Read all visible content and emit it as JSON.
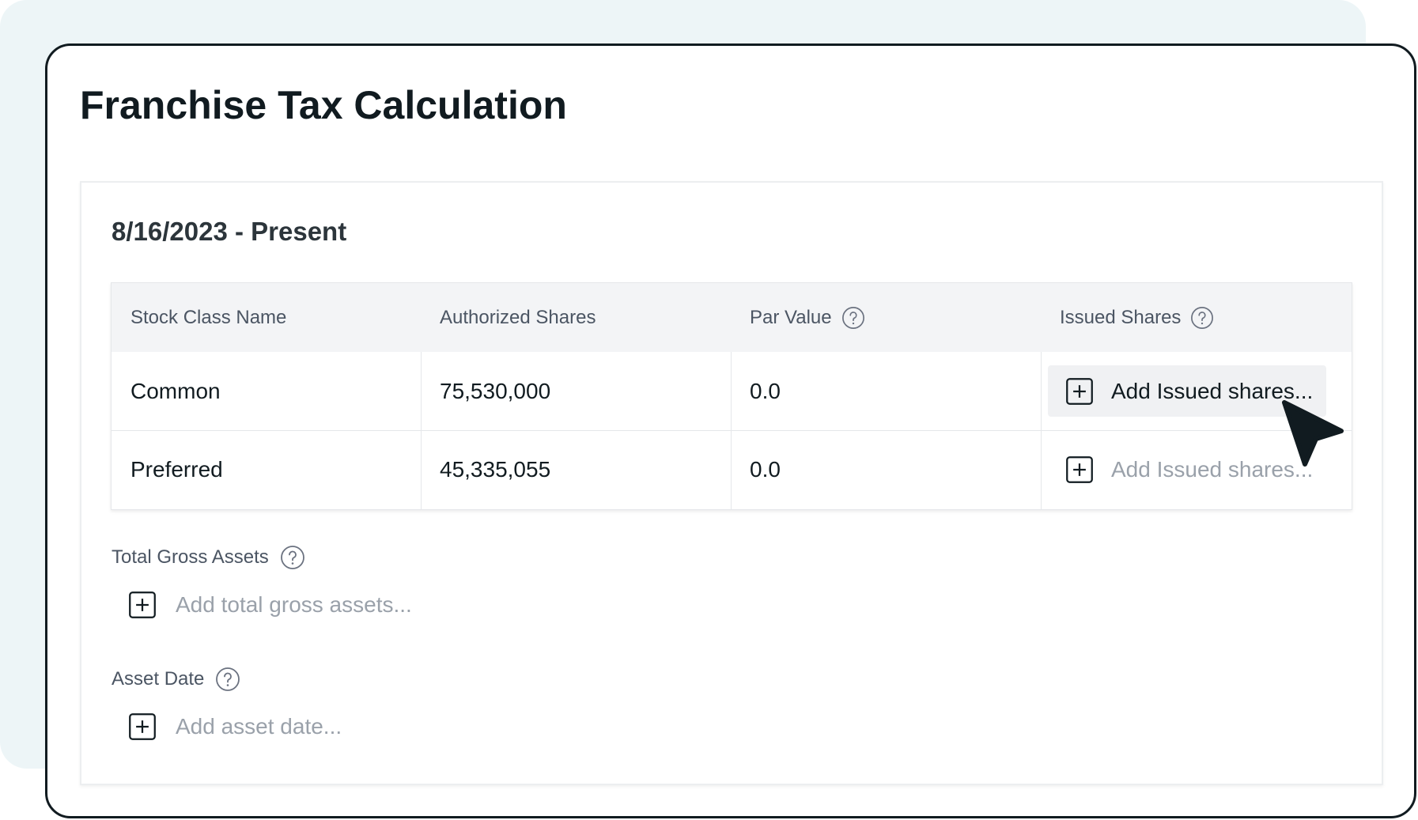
{
  "header": {
    "title": "Franchise Tax Calculation"
  },
  "section": {
    "title": "8/16/2023 - Present"
  },
  "table": {
    "columns": [
      "Stock Class Name",
      "Authorized Shares",
      "Par Value",
      "Issued Shares"
    ],
    "rows": [
      [
        "Common",
        "75,530,000",
        "0.0",
        "Add Issued shares..."
      ],
      [
        "Preferred",
        "45,335,055",
        "0.0",
        "Add Issued shares..."
      ]
    ]
  },
  "fields": [
    {
      "label": "Total Gross Assets",
      "placeholder": "Add total gross assets..."
    },
    {
      "label": "Asset Date",
      "placeholder": "Add asset date..."
    }
  ]
}
